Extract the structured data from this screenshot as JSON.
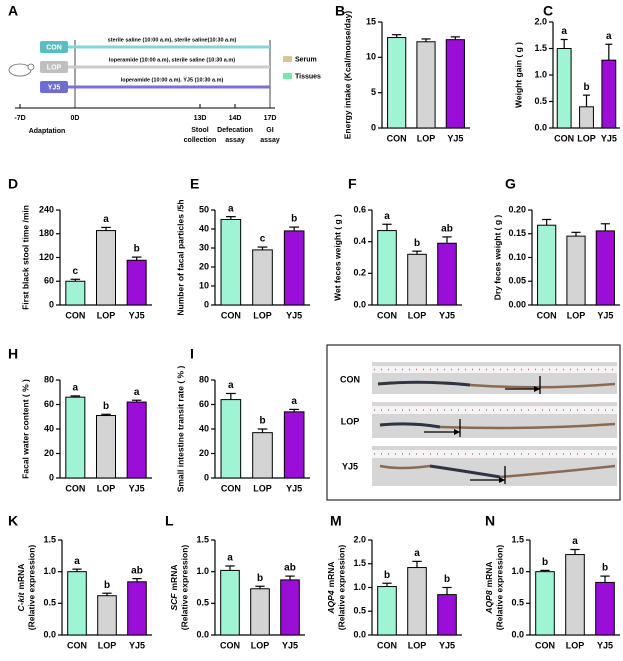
{
  "timeline": {
    "label": "A",
    "groups": [
      {
        "name": "CON",
        "treatment": "sterile saline (10:00 a.m), sterile saline(10:30 a.m)"
      },
      {
        "name": "LOP",
        "treatment": "loperamide (10:00 a.m), sterile saline (10:30 a.m)"
      },
      {
        "name": "YJ5",
        "treatment": "loperamide (10:00 a.m). YJ5 (10:30 a.m)"
      }
    ],
    "legend": [
      "Serum",
      "Tissues"
    ],
    "days": [
      "-7D",
      "0D",
      "13D",
      "14D",
      "17D"
    ],
    "phase": "Adaptation",
    "events": [
      [
        "Stool",
        "collection"
      ],
      [
        "Defecation",
        "assay"
      ],
      [
        "GI",
        "assay"
      ]
    ]
  },
  "photo": {
    "label": "J",
    "rows": [
      "CON",
      "LOP",
      "YJ5"
    ]
  },
  "chart_data": [
    {
      "type": "bar",
      "label": "B",
      "ylabel": "Energy intake (Kcal/mouse/day)",
      "categories": [
        "CON",
        "LOP",
        "YJ5"
      ],
      "values": [
        12.8,
        12.2,
        12.5
      ],
      "errors": [
        0.4,
        0.4,
        0.4
      ],
      "colors": [
        "#9ff5d3",
        "#d4d4d4",
        "#9b0ed8"
      ],
      "ylim": [
        0,
        15
      ],
      "yticks": [
        0,
        5,
        10,
        15
      ]
    },
    {
      "type": "bar",
      "label": "C",
      "ylabel": "Weight gain ( g )",
      "categories": [
        "CON",
        "LOP",
        "YJ5"
      ],
      "values": [
        1.5,
        0.4,
        1.28
      ],
      "errors": [
        0.17,
        0.22,
        0.3
      ],
      "annotations": [
        "a",
        "b",
        "a"
      ],
      "colors": [
        "#9ff5d3",
        "#d4d4d4",
        "#9b0ed8"
      ],
      "ylim": [
        0,
        2
      ],
      "yticks": [
        {
          "value": 0,
          "label": "0.0"
        },
        0.5,
        {
          "value": 1,
          "label": "1.0"
        },
        1.5,
        {
          "value": 2,
          "label": "2.0"
        }
      ]
    },
    {
      "type": "bar",
      "label": "D",
      "ylabel": "First black stool time /min",
      "categories": [
        "CON",
        "LOP",
        "YJ5"
      ],
      "values": [
        60,
        188,
        113
      ],
      "errors": [
        5,
        8,
        8
      ],
      "annotations": [
        "c",
        "a",
        "b"
      ],
      "colors": [
        "#9ff5d3",
        "#d4d4d4",
        "#9b0ed8"
      ],
      "ylim": [
        0,
        240
      ],
      "yticks": [
        0,
        60,
        120,
        180,
        240
      ]
    },
    {
      "type": "bar",
      "label": "E",
      "ylabel": "Number of facal particles /5h",
      "categories": [
        "CON",
        "LOP",
        "YJ5"
      ],
      "values": [
        45,
        29,
        39
      ],
      "errors": [
        1.5,
        1.5,
        2
      ],
      "annotations": [
        "a",
        "c",
        "b"
      ],
      "colors": [
        "#9ff5d3",
        "#d4d4d4",
        "#9b0ed8"
      ],
      "ylim": [
        0,
        50
      ],
      "yticks": [
        0,
        10,
        20,
        30,
        40,
        50
      ]
    },
    {
      "type": "bar",
      "label": "F",
      "ylabel": "Wet feces weight ( g )",
      "categories": [
        "CON",
        "LOP",
        "YJ5"
      ],
      "values": [
        0.47,
        0.32,
        0.39
      ],
      "errors": [
        0.04,
        0.02,
        0.04
      ],
      "annotations": [
        "a",
        "b",
        "ab"
      ],
      "colors": [
        "#9ff5d3",
        "#d4d4d4",
        "#9b0ed8"
      ],
      "ylim": [
        0,
        0.6
      ],
      "yticks": [
        {
          "value": 0,
          "label": "0.0"
        },
        0.2,
        0.4,
        0.6
      ]
    },
    {
      "type": "bar",
      "label": "G",
      "ylabel": "Dry feces weight ( g )",
      "categories": [
        "CON",
        "LOP",
        "YJ5"
      ],
      "values": [
        0.168,
        0.145,
        0.156
      ],
      "errors": [
        0.012,
        0.008,
        0.015
      ],
      "colors": [
        "#9ff5d3",
        "#d4d4d4",
        "#9b0ed8"
      ],
      "ylim": [
        0,
        0.2
      ],
      "yticks": [
        {
          "value": 0,
          "label": "0.00"
        },
        0.05,
        {
          "value": 0.1,
          "label": "0.10"
        },
        0.15,
        {
          "value": 0.2,
          "label": "0.20"
        }
      ]
    },
    {
      "type": "bar",
      "label": "H",
      "ylabel": "Facal water content ( % )",
      "categories": [
        "CON",
        "LOP",
        "YJ5"
      ],
      "values": [
        66,
        51,
        62
      ],
      "errors": [
        1,
        1,
        1.5
      ],
      "annotations": [
        "a",
        "b",
        "a"
      ],
      "colors": [
        "#9ff5d3",
        "#d4d4d4",
        "#9b0ed8"
      ],
      "ylim": [
        0,
        80
      ],
      "yticks": [
        0,
        20,
        40,
        60,
        80
      ]
    },
    {
      "type": "bar",
      "label": "I",
      "ylabel": "Small intestine transit rate ( % )",
      "categories": [
        "CON",
        "LOP",
        "YJ5"
      ],
      "values": [
        64,
        37,
        54
      ],
      "errors": [
        5,
        3,
        2
      ],
      "annotations": [
        "a",
        "b",
        "a"
      ],
      "colors": [
        "#9ff5d3",
        "#d4d4d4",
        "#9b0ed8"
      ],
      "ylim": [
        0,
        80
      ],
      "yticks": [
        0,
        20,
        40,
        60,
        80
      ]
    },
    {
      "type": "bar",
      "label": "K",
      "ylabel_italic": "C-kit",
      "ylabel": [
        "mRNA",
        "(Relative expression)"
      ],
      "categories": [
        "CON",
        "LOP",
        "YJ5"
      ],
      "values": [
        1.0,
        0.62,
        0.84
      ],
      "errors": [
        0.04,
        0.04,
        0.05
      ],
      "annotations": [
        "a",
        "b",
        "ab"
      ],
      "colors": [
        "#9ff5d3",
        "#d4d4d4",
        "#9b0ed8"
      ],
      "ylim": [
        0,
        1.5
      ],
      "yticks": [
        {
          "value": 0,
          "label": "0.0"
        },
        0.5,
        {
          "value": 1,
          "label": "1.0"
        },
        1.5
      ]
    },
    {
      "type": "bar",
      "label": "L",
      "ylabel_italic": "SCF",
      "ylabel": [
        "mRNA",
        "(Relative expression)"
      ],
      "categories": [
        "CON",
        "LOP",
        "YJ5"
      ],
      "values": [
        1.02,
        0.73,
        0.87
      ],
      "errors": [
        0.07,
        0.04,
        0.06
      ],
      "annotations": [
        "a",
        "b",
        "ab"
      ],
      "colors": [
        "#9ff5d3",
        "#d4d4d4",
        "#9b0ed8"
      ],
      "ylim": [
        0,
        1.5
      ],
      "yticks": [
        {
          "value": 0,
          "label": "0.0"
        },
        0.5,
        {
          "value": 1,
          "label": "1.0"
        },
        1.5
      ]
    },
    {
      "type": "bar",
      "label": "M",
      "ylabel_italic": "AQP4",
      "ylabel": [
        "mRNA",
        "(Relative expression)"
      ],
      "categories": [
        "CON",
        "LOP",
        "YJ5"
      ],
      "values": [
        1.02,
        1.42,
        0.85
      ],
      "errors": [
        0.07,
        0.13,
        0.15
      ],
      "annotations": [
        "b",
        "a",
        "b"
      ],
      "colors": [
        "#9ff5d3",
        "#d4d4d4",
        "#9b0ed8"
      ],
      "ylim": [
        0,
        2
      ],
      "yticks": [
        {
          "value": 0,
          "label": "0.0"
        },
        0.5,
        {
          "value": 1,
          "label": "1.0"
        },
        1.5,
        {
          "value": 2,
          "label": "2.0"
        }
      ]
    },
    {
      "type": "bar",
      "label": "N",
      "ylabel_italic": "AQP8",
      "ylabel": [
        "mRNA",
        "(Relative expression)"
      ],
      "categories": [
        "CON",
        "LOP",
        "YJ5"
      ],
      "values": [
        1.0,
        1.27,
        0.83
      ],
      "errors": [
        0.02,
        0.08,
        0.1
      ],
      "annotations": [
        "b",
        "a",
        "b"
      ],
      "colors": [
        "#9ff5d3",
        "#d4d4d4",
        "#9b0ed8"
      ],
      "ylim": [
        0,
        1.5
      ],
      "yticks": [
        {
          "value": 0,
          "label": "0.0"
        },
        0.5,
        {
          "value": 1,
          "label": "1.0"
        },
        1.5
      ]
    }
  ]
}
